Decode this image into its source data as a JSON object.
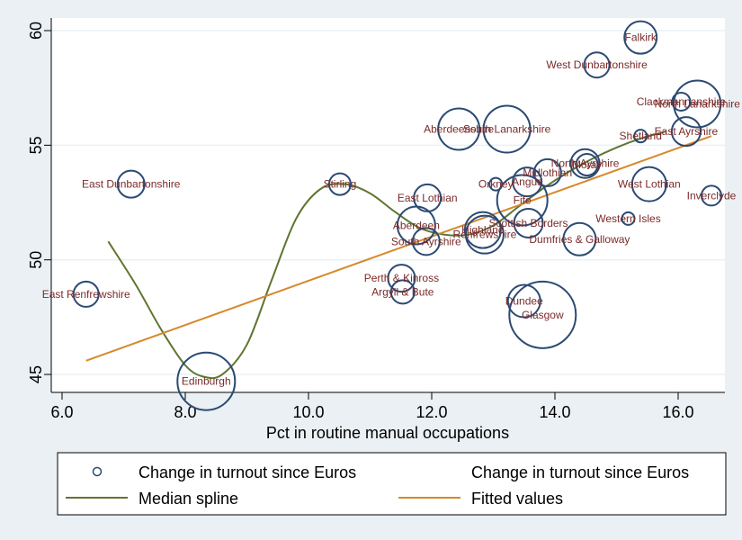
{
  "chart_data": {
    "type": "scatter",
    "title": "",
    "xlabel": "Pct in routine manual occupations",
    "ylabel": "",
    "xlim": [
      5.82,
      16.75
    ],
    "ylim": [
      43.9,
      60.6
    ],
    "xticks": [
      6.0,
      8.0,
      10.0,
      12.0,
      14.0,
      16.0
    ],
    "xtick_labels": [
      "6.0",
      "8.0",
      "10.0",
      "12.0",
      "14.0",
      "16.0"
    ],
    "yticks": [
      45,
      50,
      55,
      60
    ],
    "ytick_labels": [
      "45",
      "50",
      "55",
      "60"
    ],
    "grid": true,
    "legend_position": "bottom",
    "legend": [
      {
        "label": "Change in turnout since Euros",
        "marker": "hollow-circle"
      },
      {
        "label": "Change in turnout since Euros",
        "marker": "none"
      },
      {
        "label": "Median spline",
        "marker": "line",
        "color": "#5f7530"
      },
      {
        "label": "Fitted values",
        "marker": "line",
        "color": "#d7882b"
      }
    ],
    "series": [
      {
        "name": "Change in turnout since Euros",
        "kind": "bubble",
        "color": "#2b4a73",
        "points": [
          {
            "label": "East Dunbartonshire",
            "x": 7.12,
            "y": 53.3,
            "size": 15
          },
          {
            "label": "East Renfrewshire",
            "x": 6.39,
            "y": 48.5,
            "size": 14
          },
          {
            "label": "Edinburgh",
            "x": 8.34,
            "y": 44.7,
            "size": 32
          },
          {
            "label": "Stirling",
            "x": 10.51,
            "y": 53.3,
            "size": 12
          },
          {
            "label": "Aberdeenshire",
            "x": 12.44,
            "y": 55.7,
            "size": 23
          },
          {
            "label": "South Lanarkshire",
            "x": 13.22,
            "y": 55.7,
            "size": 26
          },
          {
            "label": "Falkirk",
            "x": 15.39,
            "y": 59.7,
            "size": 18
          },
          {
            "label": "West Dunbartonshire",
            "x": 14.68,
            "y": 58.5,
            "size": 14
          },
          {
            "label": "North Lanarkshire",
            "x": 16.31,
            "y": 56.8,
            "size": 26
          },
          {
            "label": "Clackmannanshire",
            "x": 16.05,
            "y": 56.9,
            "size": 10
          },
          {
            "label": "East Ayrshire",
            "x": 16.13,
            "y": 55.6,
            "size": 16
          },
          {
            "label": "Shetland",
            "x": 15.39,
            "y": 55.4,
            "size": 7
          },
          {
            "label": "East Lothian",
            "x": 11.93,
            "y": 52.7,
            "size": 15
          },
          {
            "label": "Aberdeen",
            "x": 11.75,
            "y": 51.5,
            "size": 21
          },
          {
            "label": "South Ayrshire",
            "x": 11.91,
            "y": 50.8,
            "size": 15
          },
          {
            "label": "Orkney",
            "x": 13.04,
            "y": 53.3,
            "size": 7
          },
          {
            "label": "Angus",
            "x": 13.55,
            "y": 53.4,
            "size": 16
          },
          {
            "label": "Fife",
            "x": 13.47,
            "y": 52.6,
            "size": 28
          },
          {
            "label": "Midlothian",
            "x": 13.88,
            "y": 53.8,
            "size": 15
          },
          {
            "label": "North Ayrshire",
            "x": 14.49,
            "y": 54.2,
            "size": 16
          },
          {
            "label": "Moray",
            "x": 14.52,
            "y": 54.15,
            "size": 12
          },
          {
            "label": "Highland",
            "x": 12.83,
            "y": 51.3,
            "size": 20
          },
          {
            "label": "Renfrewshire",
            "x": 12.86,
            "y": 51.1,
            "size": 21
          },
          {
            "label": "Scottish Borders",
            "x": 13.57,
            "y": 51.6,
            "size": 16
          },
          {
            "label": "Dumfries & Galloway",
            "x": 14.4,
            "y": 50.9,
            "size": 18
          },
          {
            "label": "Western Isles",
            "x": 15.19,
            "y": 51.8,
            "size": 7
          },
          {
            "label": "West Lothian",
            "x": 15.53,
            "y": 53.3,
            "size": 19
          },
          {
            "label": "Inverclyde",
            "x": 16.54,
            "y": 52.8,
            "size": 11
          },
          {
            "label": "Perth & Kinross",
            "x": 11.51,
            "y": 49.2,
            "size": 15
          },
          {
            "label": "Argyll & Bute",
            "x": 11.53,
            "y": 48.6,
            "size": 13
          },
          {
            "label": "Dundee",
            "x": 13.5,
            "y": 48.2,
            "size": 18
          },
          {
            "label": "Glasgow",
            "x": 13.8,
            "y": 47.6,
            "size": 37
          }
        ]
      },
      {
        "name": "Median spline",
        "kind": "line",
        "color": "#5f7530",
        "points": [
          {
            "x": 6.75,
            "y": 50.8
          },
          {
            "x": 7.2,
            "y": 48.9
          },
          {
            "x": 7.6,
            "y": 47.0
          },
          {
            "x": 8.0,
            "y": 45.4
          },
          {
            "x": 8.3,
            "y": 44.9
          },
          {
            "x": 8.6,
            "y": 45.0
          },
          {
            "x": 9.0,
            "y": 46.3
          },
          {
            "x": 9.4,
            "y": 49.1
          },
          {
            "x": 9.8,
            "y": 51.8
          },
          {
            "x": 10.2,
            "y": 53.1
          },
          {
            "x": 10.6,
            "y": 53.3
          },
          {
            "x": 11.0,
            "y": 52.9
          },
          {
            "x": 11.4,
            "y": 52.1
          },
          {
            "x": 11.8,
            "y": 51.4
          },
          {
            "x": 12.2,
            "y": 51.1
          },
          {
            "x": 12.6,
            "y": 51.1
          },
          {
            "x": 13.0,
            "y": 51.5
          },
          {
            "x": 13.4,
            "y": 52.3
          },
          {
            "x": 13.8,
            "y": 53.1
          },
          {
            "x": 14.2,
            "y": 53.8
          },
          {
            "x": 14.6,
            "y": 54.4
          },
          {
            "x": 15.0,
            "y": 54.9
          },
          {
            "x": 15.4,
            "y": 55.3
          },
          {
            "x": 15.8,
            "y": 55.6
          }
        ]
      },
      {
        "name": "Fitted values",
        "kind": "line",
        "color": "#d7882b",
        "points": [
          {
            "x": 6.39,
            "y": 45.6
          },
          {
            "x": 16.54,
            "y": 55.4
          }
        ]
      }
    ]
  }
}
